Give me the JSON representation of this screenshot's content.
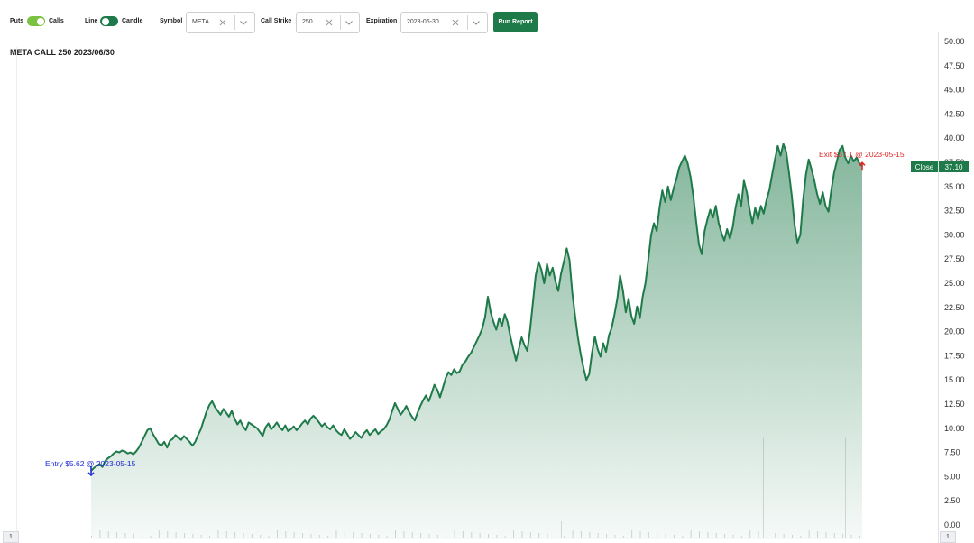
{
  "toolbar": {
    "puts_label": "Puts",
    "calls_label": "Calls",
    "line_label": "Line",
    "candle_label": "Candle",
    "symbol_label": "Symbol",
    "symbol_value": "META",
    "strike_label": "Call Strike",
    "strike_value": "250",
    "expiration_label": "Expiration",
    "expiration_value": "2023-06-30",
    "run_label": "Run Report",
    "calls_toggle_color": "#7cc242",
    "chart_type_toggle_color": "#1f7a4a"
  },
  "chart_title": "META CALL 250 2023/06/30",
  "close_label": "Close",
  "close_value": "37.10",
  "entry_label": "Entry $5.62 @ 2023-05-15",
  "exit_label": "Exit $37.1 @ 2023-05-15",
  "corner_left": "1",
  "corner_right": "1",
  "colors": {
    "line": "#1f7a4a",
    "accent": "#1f7a4a",
    "entry": "#1f2bd6",
    "exit": "#e02828"
  },
  "chart_data": {
    "type": "area",
    "ylim": [
      0,
      50
    ],
    "y_ticks": [
      "0.00",
      "2.50",
      "5.00",
      "7.50",
      "10.00",
      "12.50",
      "15.00",
      "17.50",
      "20.00",
      "22.50",
      "25.00",
      "27.50",
      "30.00",
      "32.50",
      "35.00",
      "37.50",
      "40.00",
      "42.50",
      "45.00",
      "47.50",
      "50.00"
    ],
    "series": [
      {
        "values": [
          5.6,
          5.9,
          6.1,
          6.3,
          6.0,
          6.6,
          6.9,
          7.1,
          7.4,
          7.6,
          7.5,
          7.7,
          7.6,
          7.4,
          7.5,
          7.3,
          7.6,
          8.0,
          8.6,
          9.2,
          9.8,
          10.0,
          9.4,
          8.9,
          8.4,
          8.2,
          8.6,
          8.0,
          8.7,
          8.9,
          9.3,
          9.0,
          8.8,
          9.2,
          8.9,
          8.6,
          8.2,
          8.6,
          9.3,
          9.9,
          10.8,
          11.7,
          12.4,
          12.8,
          12.2,
          11.8,
          11.4,
          12.0,
          11.6,
          11.2,
          11.8,
          11.0,
          10.4,
          10.8,
          10.2,
          9.8,
          10.6,
          10.4,
          10.2,
          10.0,
          9.6,
          9.2,
          10.1,
          10.5,
          9.9,
          10.2,
          10.6,
          10.1,
          9.8,
          10.3,
          9.7,
          9.9,
          10.2,
          9.8,
          10.1,
          10.5,
          10.8,
          10.4,
          11.0,
          11.3,
          11.0,
          10.6,
          10.2,
          10.5,
          10.1,
          9.9,
          10.3,
          9.8,
          9.5,
          9.3,
          9.9,
          9.4,
          8.9,
          9.2,
          9.6,
          9.3,
          9.0,
          9.5,
          9.8,
          9.3,
          9.6,
          9.9,
          9.4,
          9.7,
          9.9,
          10.3,
          10.9,
          11.8,
          12.6,
          12.0,
          11.4,
          11.8,
          12.3,
          11.7,
          11.2,
          10.8,
          11.6,
          12.3,
          12.9,
          13.4,
          12.8,
          13.6,
          14.5,
          14.0,
          13.2,
          14.2,
          15.2,
          15.8,
          15.5,
          16.1,
          15.7,
          15.9,
          16.6,
          16.9,
          17.4,
          17.8,
          18.4,
          19.0,
          19.6,
          20.3,
          21.5,
          23.6,
          22.0,
          21.0,
          20.2,
          21.4,
          20.6,
          21.8,
          21.0,
          19.5,
          18.2,
          17.0,
          18.2,
          19.4,
          18.6,
          18.0,
          20.2,
          23.0,
          25.8,
          27.2,
          26.4,
          25.0,
          27.0,
          25.8,
          26.6,
          25.2,
          24.2,
          26.0,
          27.2,
          28.6,
          27.4,
          24.0,
          21.6,
          19.4,
          17.6,
          16.2,
          15.0,
          15.6,
          17.8,
          19.5,
          18.2,
          17.4,
          18.8,
          17.9,
          19.6,
          20.4,
          21.8,
          23.4,
          25.8,
          24.2,
          22.0,
          23.4,
          21.6,
          20.8,
          22.6,
          21.4,
          23.6,
          25.0,
          27.4,
          30.0,
          31.2,
          30.4,
          32.8,
          34.6,
          33.4,
          35.0,
          33.6,
          34.8,
          35.8,
          37.0,
          37.6,
          38.2,
          37.4,
          36.0,
          34.0,
          31.4,
          29.0,
          28.0,
          30.4,
          31.6,
          32.6,
          31.8,
          33.0,
          31.2,
          30.2,
          29.4,
          30.6,
          29.6,
          30.8,
          32.8,
          34.2,
          33.0,
          35.6,
          34.4,
          32.6,
          31.2,
          32.8,
          31.6,
          33.0,
          32.2,
          33.6,
          34.6,
          36.2,
          37.8,
          39.2,
          38.2,
          39.4,
          38.6,
          36.4,
          34.0,
          31.0,
          29.2,
          30.0,
          33.6,
          36.2,
          37.8,
          36.8,
          35.6,
          34.2,
          33.2,
          34.4,
          33.0,
          32.4,
          34.6,
          36.4,
          37.6,
          38.8,
          39.2,
          38.0,
          37.4,
          38.2,
          37.6,
          38.0,
          37.4,
          37.1
        ]
      }
    ],
    "volume_note": "faint volume bars along the bottom"
  }
}
